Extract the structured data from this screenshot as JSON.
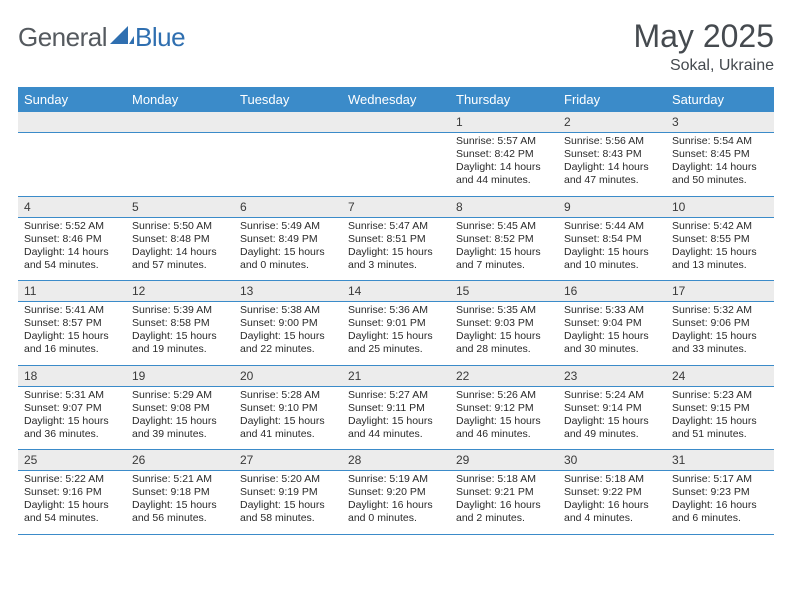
{
  "brand": {
    "part1": "General",
    "part2": "Blue"
  },
  "title": "May 2025",
  "location": "Sokal, Ukraine",
  "header_bg": "#3b8bc9",
  "daynum_bg": "#ececec",
  "border_color": "#3b8bc9",
  "title_color": "#454a4f",
  "logo_gray": "#555a5f",
  "logo_blue": "#2f6fb0",
  "dow": [
    "Sunday",
    "Monday",
    "Tuesday",
    "Wednesday",
    "Thursday",
    "Friday",
    "Saturday"
  ],
  "weeks": [
    [
      null,
      null,
      null,
      null,
      {
        "n": "1",
        "sunrise": "5:57 AM",
        "sunset": "8:42 PM",
        "daylight": "14 hours and 44 minutes."
      },
      {
        "n": "2",
        "sunrise": "5:56 AM",
        "sunset": "8:43 PM",
        "daylight": "14 hours and 47 minutes."
      },
      {
        "n": "3",
        "sunrise": "5:54 AM",
        "sunset": "8:45 PM",
        "daylight": "14 hours and 50 minutes."
      }
    ],
    [
      {
        "n": "4",
        "sunrise": "5:52 AM",
        "sunset": "8:46 PM",
        "daylight": "14 hours and 54 minutes."
      },
      {
        "n": "5",
        "sunrise": "5:50 AM",
        "sunset": "8:48 PM",
        "daylight": "14 hours and 57 minutes."
      },
      {
        "n": "6",
        "sunrise": "5:49 AM",
        "sunset": "8:49 PM",
        "daylight": "15 hours and 0 minutes."
      },
      {
        "n": "7",
        "sunrise": "5:47 AM",
        "sunset": "8:51 PM",
        "daylight": "15 hours and 3 minutes."
      },
      {
        "n": "8",
        "sunrise": "5:45 AM",
        "sunset": "8:52 PM",
        "daylight": "15 hours and 7 minutes."
      },
      {
        "n": "9",
        "sunrise": "5:44 AM",
        "sunset": "8:54 PM",
        "daylight": "15 hours and 10 minutes."
      },
      {
        "n": "10",
        "sunrise": "5:42 AM",
        "sunset": "8:55 PM",
        "daylight": "15 hours and 13 minutes."
      }
    ],
    [
      {
        "n": "11",
        "sunrise": "5:41 AM",
        "sunset": "8:57 PM",
        "daylight": "15 hours and 16 minutes."
      },
      {
        "n": "12",
        "sunrise": "5:39 AM",
        "sunset": "8:58 PM",
        "daylight": "15 hours and 19 minutes."
      },
      {
        "n": "13",
        "sunrise": "5:38 AM",
        "sunset": "9:00 PM",
        "daylight": "15 hours and 22 minutes."
      },
      {
        "n": "14",
        "sunrise": "5:36 AM",
        "sunset": "9:01 PM",
        "daylight": "15 hours and 25 minutes."
      },
      {
        "n": "15",
        "sunrise": "5:35 AM",
        "sunset": "9:03 PM",
        "daylight": "15 hours and 28 minutes."
      },
      {
        "n": "16",
        "sunrise": "5:33 AM",
        "sunset": "9:04 PM",
        "daylight": "15 hours and 30 minutes."
      },
      {
        "n": "17",
        "sunrise": "5:32 AM",
        "sunset": "9:06 PM",
        "daylight": "15 hours and 33 minutes."
      }
    ],
    [
      {
        "n": "18",
        "sunrise": "5:31 AM",
        "sunset": "9:07 PM",
        "daylight": "15 hours and 36 minutes."
      },
      {
        "n": "19",
        "sunrise": "5:29 AM",
        "sunset": "9:08 PM",
        "daylight": "15 hours and 39 minutes."
      },
      {
        "n": "20",
        "sunrise": "5:28 AM",
        "sunset": "9:10 PM",
        "daylight": "15 hours and 41 minutes."
      },
      {
        "n": "21",
        "sunrise": "5:27 AM",
        "sunset": "9:11 PM",
        "daylight": "15 hours and 44 minutes."
      },
      {
        "n": "22",
        "sunrise": "5:26 AM",
        "sunset": "9:12 PM",
        "daylight": "15 hours and 46 minutes."
      },
      {
        "n": "23",
        "sunrise": "5:24 AM",
        "sunset": "9:14 PM",
        "daylight": "15 hours and 49 minutes."
      },
      {
        "n": "24",
        "sunrise": "5:23 AM",
        "sunset": "9:15 PM",
        "daylight": "15 hours and 51 minutes."
      }
    ],
    [
      {
        "n": "25",
        "sunrise": "5:22 AM",
        "sunset": "9:16 PM",
        "daylight": "15 hours and 54 minutes."
      },
      {
        "n": "26",
        "sunrise": "5:21 AM",
        "sunset": "9:18 PM",
        "daylight": "15 hours and 56 minutes."
      },
      {
        "n": "27",
        "sunrise": "5:20 AM",
        "sunset": "9:19 PM",
        "daylight": "15 hours and 58 minutes."
      },
      {
        "n": "28",
        "sunrise": "5:19 AM",
        "sunset": "9:20 PM",
        "daylight": "16 hours and 0 minutes."
      },
      {
        "n": "29",
        "sunrise": "5:18 AM",
        "sunset": "9:21 PM",
        "daylight": "16 hours and 2 minutes."
      },
      {
        "n": "30",
        "sunrise": "5:18 AM",
        "sunset": "9:22 PM",
        "daylight": "16 hours and 4 minutes."
      },
      {
        "n": "31",
        "sunrise": "5:17 AM",
        "sunset": "9:23 PM",
        "daylight": "16 hours and 6 minutes."
      }
    ]
  ],
  "labels": {
    "sunrise": "Sunrise: ",
    "sunset": "Sunset: ",
    "daylight": "Daylight: "
  }
}
